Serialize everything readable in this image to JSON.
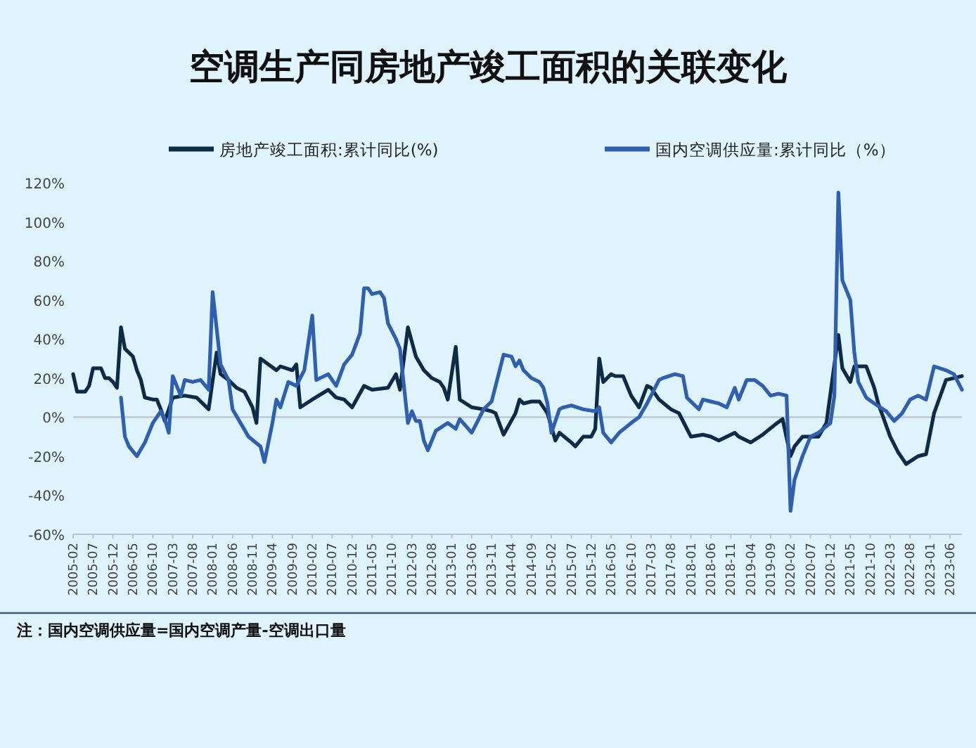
{
  "chart_data": {
    "type": "line",
    "title": "空调生产同房地产竣工面积的关联变化",
    "legend": "top",
    "line_style": "solid",
    "xlim": [
      "2005-02",
      "2023-09"
    ],
    "xticks": [
      "2005-02",
      "2005-07",
      "2005-12",
      "2006-05",
      "2006-10",
      "2007-03",
      "2007-08",
      "2008-01",
      "2008-06",
      "2008-11",
      "2009-04",
      "2009-09",
      "2010-02",
      "2010-07",
      "2010-12",
      "2011-05",
      "2011-10",
      "2012-03",
      "2012-08",
      "2013-01",
      "2013-06",
      "2013-11",
      "2014-04",
      "2014-09",
      "2015-02",
      "2015-07",
      "2015-12",
      "2016-05",
      "2016-10",
      "2017-03",
      "2017-08",
      "2018-01",
      "2018-06",
      "2018-11",
      "2019-04",
      "2019-09",
      "2020-02",
      "2020-07",
      "2020-12",
      "2021-05",
      "2021-10",
      "2022-03",
      "2022-08",
      "2023-01",
      "2023-06"
    ],
    "ylim": [
      -60,
      120
    ],
    "yticks": [
      {
        "value": -60,
        "label": "-60%"
      },
      {
        "value": -40,
        "label": "-40%"
      },
      {
        "value": -20,
        "label": "-20%"
      },
      {
        "value": 0,
        "label": "0%"
      },
      {
        "value": 20,
        "label": "20%"
      },
      {
        "value": 40,
        "label": "40%"
      },
      {
        "value": 60,
        "label": "60%"
      },
      {
        "value": 80,
        "label": "80%"
      },
      {
        "value": 100,
        "label": "100%"
      },
      {
        "value": 120,
        "label": "120%"
      }
    ],
    "series": [
      {
        "name": "房地产竣工面积:累计同比(%)",
        "color": "#0d2a47",
        "x": [
          "2005-02",
          "2005-03",
          "2005-05",
          "2005-06",
          "2005-07",
          "2005-09",
          "2005-10",
          "2005-11",
          "2005-12",
          "2006-01",
          "2006-02",
          "2006-03",
          "2006-05",
          "2006-06",
          "2006-07",
          "2006-08",
          "2006-10",
          "2006-11",
          "2006-12",
          "2007-01",
          "2007-03",
          "2007-06",
          "2007-09",
          "2007-12",
          "2008-02",
          "2008-03",
          "2008-05",
          "2008-07",
          "2008-09",
          "2008-11",
          "2008-12",
          "2009-01",
          "2009-03",
          "2009-05",
          "2009-06",
          "2009-09",
          "2009-10",
          "2009-11",
          "2010-02",
          "2010-06",
          "2010-08",
          "2010-10",
          "2010-12",
          "2011-03",
          "2011-05",
          "2011-09",
          "2011-11",
          "2011-12",
          "2012-02",
          "2012-04",
          "2012-06",
          "2012-08",
          "2012-10",
          "2012-11",
          "2012-12",
          "2013-02",
          "2013-03",
          "2013-06",
          "2013-09",
          "2013-11",
          "2013-12",
          "2014-02",
          "2014-05",
          "2014-06",
          "2014-07",
          "2014-09",
          "2014-11",
          "2015-01",
          "2015-03",
          "2015-04",
          "2015-07",
          "2015-08",
          "2015-10",
          "2015-12",
          "2016-01",
          "2016-02",
          "2016-03",
          "2016-05",
          "2016-06",
          "2016-08",
          "2016-10",
          "2016-12",
          "2017-02",
          "2017-03",
          "2017-05",
          "2017-08",
          "2017-10",
          "2017-12",
          "2018-01",
          "2018-04",
          "2018-06",
          "2018-08",
          "2018-10",
          "2018-12",
          "2019-01",
          "2019-04",
          "2019-07",
          "2019-10",
          "2019-12",
          "2020-02",
          "2020-03",
          "2020-05",
          "2020-09",
          "2020-11",
          "2021-02",
          "2021-03",
          "2021-05",
          "2021-06",
          "2021-09",
          "2021-11",
          "2021-12",
          "2022-03",
          "2022-05",
          "2022-07",
          "2022-10",
          "2022-12",
          "2023-02",
          "2023-05",
          "2023-07",
          "2023-09"
        ],
        "values": [
          22,
          13,
          13,
          16,
          25,
          25,
          20,
          20,
          18,
          15,
          46,
          35,
          31,
          24,
          19,
          10,
          9,
          9,
          4,
          -2,
          10,
          11,
          10,
          4,
          33,
          22,
          19,
          15,
          13,
          5,
          -3,
          30,
          27,
          24,
          26,
          24,
          27,
          5,
          9,
          14,
          10,
          9,
          5,
          16,
          14,
          15,
          22,
          14,
          46,
          31,
          24,
          20,
          18,
          15,
          9,
          36,
          9,
          5,
          4,
          3,
          2,
          -9,
          2,
          9,
          7,
          8,
          8,
          2,
          -12,
          -8,
          -13,
          -15,
          -10,
          -10,
          -6,
          30,
          18,
          22,
          21,
          21,
          11,
          5,
          16,
          15,
          9,
          4,
          2,
          -6,
          -10,
          -9,
          -10,
          -12,
          -10,
          -8,
          -10,
          -13,
          -9,
          -4,
          -1,
          -20,
          -15,
          -10,
          -10,
          -3,
          42,
          25,
          18,
          26,
          26,
          15,
          7,
          -10,
          -18,
          -24,
          -20,
          -19,
          2,
          19,
          20,
          21
        ]
      },
      {
        "name": "国内空调供应量:累计同比（%）",
        "color": "#2f5fae",
        "x": [
          "2006-02",
          "2006-03",
          "2006-04",
          "2006-06",
          "2006-08",
          "2006-10",
          "2006-12",
          "2007-01",
          "2007-02",
          "2007-03",
          "2007-05",
          "2007-06",
          "2007-08",
          "2007-10",
          "2007-12",
          "2008-01",
          "2008-03",
          "2008-05",
          "2008-06",
          "2008-08",
          "2008-10",
          "2009-01",
          "2009-02",
          "2009-04",
          "2009-05",
          "2009-06",
          "2009-08",
          "2009-10",
          "2009-12",
          "2010-02",
          "2010-03",
          "2010-04",
          "2010-06",
          "2010-08",
          "2010-10",
          "2010-12",
          "2011-02",
          "2011-03",
          "2011-04",
          "2011-05",
          "2011-07",
          "2011-08",
          "2011-09",
          "2011-11",
          "2011-12",
          "2012-02",
          "2012-03",
          "2012-04",
          "2012-05",
          "2012-06",
          "2012-07",
          "2012-09",
          "2012-12",
          "2013-02",
          "2013-03",
          "2013-06",
          "2013-09",
          "2013-11",
          "2014-02",
          "2014-04",
          "2014-05",
          "2014-06",
          "2014-07",
          "2014-09",
          "2014-11",
          "2014-12",
          "2015-01",
          "2015-02",
          "2015-04",
          "2015-05",
          "2015-07",
          "2015-10",
          "2016-01",
          "2016-02",
          "2016-03",
          "2016-05",
          "2016-07",
          "2016-10",
          "2016-12",
          "2017-02",
          "2017-05",
          "2017-06",
          "2017-09",
          "2017-11",
          "2017-12",
          "2018-03",
          "2018-04",
          "2018-06",
          "2018-08",
          "2018-10",
          "2018-12",
          "2019-01",
          "2019-03",
          "2019-05",
          "2019-07",
          "2019-09",
          "2019-11",
          "2020-01",
          "2020-02",
          "2020-03",
          "2020-05",
          "2020-07",
          "2020-09",
          "2020-12",
          "2021-01",
          "2021-02",
          "2021-03",
          "2021-05",
          "2021-06",
          "2021-07",
          "2021-09",
          "2021-11",
          "2022-02",
          "2022-04",
          "2022-06",
          "2022-08",
          "2022-10",
          "2022-12",
          "2023-02",
          "2023-05",
          "2023-07",
          "2023-09"
        ],
        "values": [
          10,
          -10,
          -15,
          -20,
          -13,
          -3,
          3,
          -1,
          -8,
          21,
          11,
          19,
          18,
          19,
          14,
          64,
          27,
          19,
          4,
          -3,
          -10,
          -15,
          -23,
          -3,
          9,
          5,
          18,
          16,
          24,
          52,
          19,
          20,
          22,
          16,
          27,
          32,
          43,
          66,
          66,
          63,
          64,
          61,
          48,
          40,
          35,
          -3,
          3,
          -2,
          -2,
          -12,
          -17,
          -7,
          -3,
          -6,
          -1,
          -8,
          4,
          8,
          32,
          31,
          26,
          29,
          24,
          20,
          18,
          15,
          7,
          -8,
          4,
          5,
          6,
          4,
          3,
          5,
          -8,
          -13,
          -8,
          -3,
          0,
          7,
          19,
          20,
          22,
          21,
          10,
          4,
          9,
          8,
          7,
          5,
          15,
          9,
          19,
          19,
          16,
          11,
          12,
          11,
          -48,
          -32,
          -20,
          -10,
          -8,
          -3,
          11,
          115,
          70,
          60,
          33,
          18,
          10,
          7,
          3,
          -2,
          2,
          9,
          11,
          9,
          26,
          24,
          22,
          14
        ]
      }
    ],
    "annotations": [
      "注：国内空调供应量=国内空调产量-空调出口量"
    ]
  }
}
